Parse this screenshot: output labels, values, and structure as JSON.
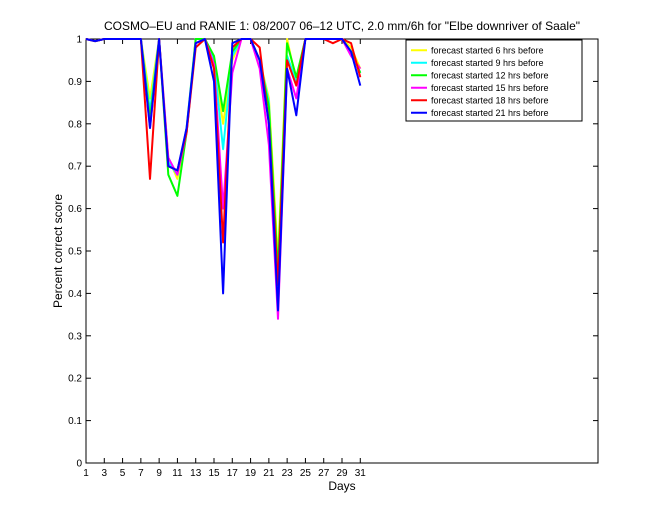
{
  "chart_data": {
    "type": "line",
    "title": "COSMO–EU and RANIE 1: 08/2007 06–12 UTC, 2.0 mm/6h for \"Elbe downriver of Saale\"",
    "xlabel": "Days",
    "ylabel": "Percent correct score",
    "xlim": [
      1,
      57
    ],
    "ylim": [
      0,
      1
    ],
    "x_ticks": [
      1,
      3,
      5,
      7,
      9,
      11,
      13,
      15,
      17,
      19,
      21,
      23,
      25,
      27,
      29,
      31
    ],
    "y_ticks": [
      0,
      0.1,
      0.2,
      0.3,
      0.4,
      0.5,
      0.6,
      0.7,
      0.8,
      0.9,
      1
    ],
    "grid": false,
    "legend_position": "top-right",
    "x": [
      1,
      2,
      3,
      4,
      5,
      6,
      7,
      8,
      9,
      10,
      11,
      12,
      13,
      14,
      15,
      16,
      17,
      18,
      19,
      20,
      21,
      22,
      23,
      24,
      25,
      26,
      27,
      28,
      29,
      30,
      31
    ],
    "series": [
      {
        "name": "forecast started  6  hrs before",
        "color": "#ffff00",
        "values": [
          1,
          0.995,
          1,
          1,
          1,
          1,
          1,
          0.86,
          1,
          0.72,
          0.67,
          0.79,
          1,
          1,
          0.95,
          0.8,
          0.95,
          1,
          1,
          0.95,
          0.86,
          0.48,
          1,
          0.9,
          1,
          1,
          1,
          1,
          1,
          0.98,
          0.93
        ]
      },
      {
        "name": "forecast started  9  hrs before",
        "color": "#00ffff",
        "values": [
          1,
          0.995,
          1,
          1,
          1,
          1,
          1,
          0.83,
          1,
          0.71,
          0.68,
          0.79,
          1,
          1,
          0.95,
          0.74,
          0.96,
          1,
          1,
          0.95,
          0.85,
          0.38,
          0.96,
          0.9,
          1,
          1,
          1,
          1,
          1,
          0.97,
          0.92
        ]
      },
      {
        "name": "forecast started  12  hrs before",
        "color": "#00ff00",
        "values": [
          1,
          0.995,
          1,
          1,
          1,
          1,
          1,
          0.81,
          1,
          0.68,
          0.63,
          0.78,
          1,
          1,
          0.96,
          0.83,
          0.97,
          1,
          1,
          0.95,
          0.84,
          0.45,
          0.99,
          0.91,
          1,
          1,
          1,
          1,
          1,
          0.97,
          0.92
        ]
      },
      {
        "name": "forecast started  15  hrs before",
        "color": "#ff00ff",
        "values": [
          1,
          0.995,
          1,
          1,
          1,
          1,
          1,
          0.79,
          1,
          0.72,
          0.68,
          0.78,
          0.99,
          1,
          0.94,
          0.6,
          0.92,
          1,
          1,
          0.93,
          0.75,
          0.34,
          0.93,
          0.86,
          1,
          1,
          1,
          1,
          1,
          0.96,
          0.93
        ]
      },
      {
        "name": "forecast started  18  hrs before",
        "color": "#ff0000",
        "values": [
          1,
          0.995,
          1,
          1,
          1,
          1,
          1,
          0.67,
          1,
          0.7,
          0.69,
          0.78,
          0.98,
          1,
          0.93,
          0.52,
          0.98,
          1,
          1,
          0.98,
          0.8,
          0.42,
          0.95,
          0.89,
          1,
          1,
          1,
          0.99,
          1,
          0.99,
          0.91
        ]
      },
      {
        "name": "forecast started  21  hrs before",
        "color": "#0000ff",
        "values": [
          1,
          0.995,
          1,
          1,
          1,
          1,
          1,
          0.79,
          1,
          0.7,
          0.69,
          0.79,
          0.99,
          1,
          0.9,
          0.4,
          0.99,
          1,
          1,
          0.95,
          0.8,
          0.36,
          0.93,
          0.82,
          1,
          1,
          1,
          1,
          1,
          0.97,
          0.89
        ]
      }
    ]
  }
}
